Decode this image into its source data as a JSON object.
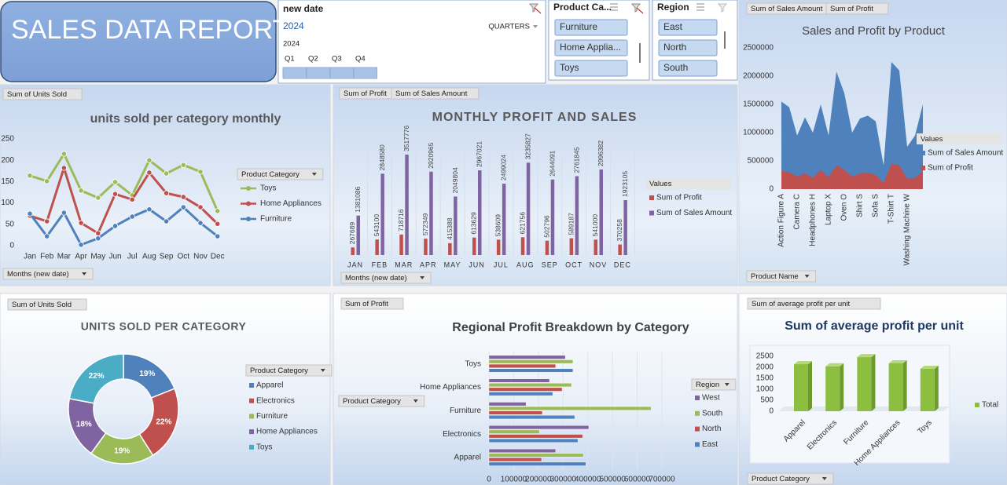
{
  "header": {
    "title": "SALES DATA REPORT"
  },
  "timeline": {
    "title": "new date",
    "selection": "2024",
    "level": "QUARTERS",
    "year": "2024",
    "periods": [
      "Q1",
      "Q2",
      "Q3",
      "Q4"
    ]
  },
  "slicers": [
    {
      "title": "Product Ca...",
      "items": [
        "Furniture",
        "Home Applia...",
        "Toys"
      ]
    },
    {
      "title": "Region",
      "items": [
        "East",
        "North",
        "South"
      ]
    }
  ],
  "chart_data": [
    {
      "type": "line",
      "title": "units sold per category monthly",
      "value_buttons": [
        "Sum of Units Sold"
      ],
      "axis_field": "Months (new date)",
      "legend_title": "Product Category",
      "categories": [
        "Jan",
        "Feb",
        "Mar",
        "Apr",
        "May",
        "Jun",
        "Jul",
        "Aug",
        "Sep",
        "Oct",
        "Nov",
        "Dec"
      ],
      "ylim": [
        0,
        250
      ],
      "yticks": [
        0,
        50,
        100,
        150,
        200,
        250
      ],
      "series": [
        {
          "name": "Toys",
          "color": "#9bbb59",
          "values": [
            164,
            151,
            215,
            129,
            112,
            149,
            118,
            200,
            169,
            189,
            173,
            81
          ]
        },
        {
          "name": "Home Appliances",
          "color": "#c0504d",
          "values": [
            70,
            57,
            182,
            53,
            29,
            121,
            108,
            171,
            123,
            114,
            90,
            51
          ]
        },
        {
          "name": "Furniture",
          "color": "#4f81bd",
          "values": [
            75,
            22,
            77,
            2,
            17,
            46,
            68,
            85,
            57,
            90,
            53,
            22
          ]
        }
      ]
    },
    {
      "type": "bar",
      "title": "MONTHLY PROFIT AND SALES",
      "value_buttons": [
        "Sum of Profit",
        "Sum of Sales Amount"
      ],
      "axis_field": "Months (new date)",
      "legend_title": "Values",
      "categories": [
        "JAN",
        "FEB",
        "MAR",
        "APR",
        "MAY",
        "JUN",
        "JUL",
        "AUG",
        "SEP",
        "OCT",
        "NOV",
        "DEC"
      ],
      "series": [
        {
          "name": "Sum of Profit",
          "color": "#c0504d",
          "values": [
            267689,
            543100,
            718716,
            572349,
            415388,
            613629,
            538609,
            621756,
            502796,
            589187,
            541000,
            370258
          ]
        },
        {
          "name": "Sum of Sales Amount",
          "color": "#8064a2",
          "values": [
            1381086,
            2848580,
            3517776,
            2920965,
            2049804,
            2967021,
            2499024,
            3235827,
            2644091,
            2761845,
            2996382,
            1923105
          ]
        }
      ]
    },
    {
      "type": "area",
      "title": "Sales and Profit by Product",
      "value_buttons": [
        "Sum of Sales Amount",
        "Sum of Profit"
      ],
      "axis_field": "Product Name",
      "legend_title": "Values",
      "categories": [
        "Action Figure A",
        null,
        "Camera C",
        null,
        "Headphones H",
        null,
        "Laptop X",
        null,
        "Oven O",
        null,
        "Shirt S",
        null,
        "Sofa S",
        null,
        "T-Shirt T",
        null,
        "Washing Machine W",
        null,
        null
      ],
      "ylim": [
        0,
        2500000
      ],
      "yticks": [
        0,
        500000,
        1000000,
        1500000,
        2000000,
        2500000
      ],
      "series": [
        {
          "name": "Sum of Sales Amount",
          "color": "#4f81bd",
          "values": [
            1550000,
            1450000,
            950000,
            1270000,
            1000000,
            1500000,
            950000,
            2080000,
            1700000,
            1000000,
            1250000,
            1300000,
            1200000,
            420000,
            2250000,
            2100000,
            750000,
            950000,
            1500000
          ]
        },
        {
          "name": "Sum of Profit",
          "color": "#c0504d",
          "values": [
            320000,
            300000,
            220000,
            280000,
            200000,
            340000,
            210000,
            420000,
            340000,
            220000,
            280000,
            290000,
            250000,
            110000,
            450000,
            420000,
            180000,
            200000,
            320000
          ]
        }
      ]
    },
    {
      "type": "donut",
      "title": "UNITS SOLD PER CATEGORY",
      "value_buttons": [
        "Sum of Units Sold"
      ],
      "legend_title": "Product Category",
      "categories": [
        "Apparel",
        "Electronics",
        "Furniture",
        "Home Appliances",
        "Toys"
      ],
      "values": [
        19,
        22,
        19,
        18,
        22
      ],
      "value_labels": [
        "19%",
        "22%",
        "19%",
        "18%",
        "22%"
      ],
      "colors": [
        "#4f81bd",
        "#c0504d",
        "#9bbb59",
        "#8064a2",
        "#4bacc6"
      ]
    },
    {
      "type": "hbar",
      "title": "Regional Profit Breakdown by Category",
      "value_buttons": [
        "Sum of Profit"
      ],
      "axis_field": "Product Category",
      "legend_title": "Region",
      "categories": [
        "Apparel",
        "Electronics",
        "Furniture",
        "Home Appliances",
        "Toys"
      ],
      "xlim": [
        0,
        700000
      ],
      "xticks": [
        0,
        100000,
        200000,
        300000,
        400000,
        500000,
        600000,
        700000
      ],
      "series": [
        {
          "name": "East",
          "color": "#4f81bd",
          "values": [
            392000,
            360000,
            347000,
            258000,
            340000
          ]
        },
        {
          "name": "North",
          "color": "#c0504d",
          "values": [
            213000,
            379000,
            216000,
            296000,
            270000
          ]
        },
        {
          "name": "South",
          "color": "#9bbb59",
          "values": [
            382000,
            204000,
            656000,
            334000,
            340000
          ]
        },
        {
          "name": "West",
          "color": "#8064a2",
          "values": [
            270000,
            404000,
            150000,
            245000,
            309000
          ]
        }
      ]
    },
    {
      "type": "column3d",
      "title": "Sum of average profit per unit",
      "value_buttons": [
        "Sum of average profit per unit"
      ],
      "axis_field": "Product Category",
      "categories": [
        "Apparel",
        "Electronics",
        "Furniture",
        "Home Appliances",
        "Toys"
      ],
      "ylim": [
        0,
        2500
      ],
      "yticks": [
        0,
        500,
        1000,
        1500,
        2000,
        2500
      ],
      "series": [
        {
          "name": "Total",
          "color": "#8cbf3f",
          "values": [
            2140,
            2040,
            2460,
            2180,
            1930
          ]
        }
      ]
    }
  ]
}
